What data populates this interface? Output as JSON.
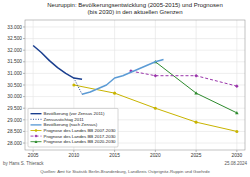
{
  "chart_data": {
    "type": "line",
    "title": "Neuruppin: Bevölkerungsentwicklung (2005-2015) und Prognosen\n(bis 2030) in den aktuellen Grenzen",
    "xlim": [
      2004.0,
      2031.0
    ],
    "ylim": [
      27700,
      33300
    ],
    "xticks": [
      2005,
      2010,
      2015,
      2020,
      2025,
      2030
    ],
    "yticks": [
      {
        "value": 28000,
        "label": "28.000"
      },
      {
        "value": 28500,
        "label": "28.500"
      },
      {
        "value": 29000,
        "label": "29.000"
      },
      {
        "value": 29500,
        "label": "29.500"
      },
      {
        "value": 30000,
        "label": "30.000"
      },
      {
        "value": 30500,
        "label": "30.500"
      },
      {
        "value": 31000,
        "label": "31.000"
      },
      {
        "value": 31500,
        "label": "31.500"
      },
      {
        "value": 32000,
        "label": "32.000"
      },
      {
        "value": 32500,
        "label": "32.500"
      },
      {
        "value": 33000,
        "label": "33.000"
      }
    ],
    "grid": true,
    "legend": "lower left",
    "series": [
      {
        "name": "Bevölkerung (vor Zensus 2011)",
        "color": "#1a3f8f",
        "line_style": "solid",
        "x": [
          2005,
          2006,
          2007,
          2008,
          2009,
          2010,
          2011
        ],
        "values": [
          32200,
          31900,
          31550,
          31250,
          31000,
          30800,
          30750
        ]
      },
      {
        "name": "Zensusstichtag 2011",
        "color": "#1a3f8f",
        "line_style": "dotted",
        "x": [
          2010,
          2011
        ],
        "values": [
          30800,
          30100
        ]
      },
      {
        "name": "Bevölkerung (nach Zensus)",
        "color": "#5b9bd5",
        "line_style": "solid",
        "x": [
          2011,
          2012,
          2013,
          2014,
          2015,
          2016,
          2017,
          2018,
          2019,
          2020,
          2021
        ],
        "values": [
          30100,
          30200,
          30350,
          30500,
          30800,
          30900,
          31050,
          31200,
          31350,
          31500,
          31600
        ]
      },
      {
        "name": "Prognose des Landes BB 2007-2030",
        "color": "#c8b400",
        "line_style": "solid",
        "marker": "circle",
        "x": [
          2010,
          2015,
          2020,
          2025,
          2030
        ],
        "values": [
          30500,
          30150,
          29500,
          28900,
          28500
        ]
      },
      {
        "name": "Prognose des Landes BB 2017-2030",
        "color": "#9933aa",
        "line_style": "dashed",
        "marker": "diamond",
        "x": [
          2017,
          2020,
          2025,
          2030
        ],
        "values": [
          31100,
          30900,
          30900,
          30450
        ]
      },
      {
        "name": "Prognose des Landes BB 2020-2030",
        "color": "#2e8b2e",
        "line_style": "solid",
        "marker": "triangle",
        "x": [
          2020,
          2025,
          2030
        ],
        "values": [
          31500,
          30150,
          29300
        ]
      }
    ],
    "annotations": [
      "by Hans S. Thierack",
      "25.08.2024",
      "Quellen: Amt für Statistik Berlin-Brandenburg, Landkreis Ostprignitz-Ruppin und Goehrde"
    ]
  }
}
